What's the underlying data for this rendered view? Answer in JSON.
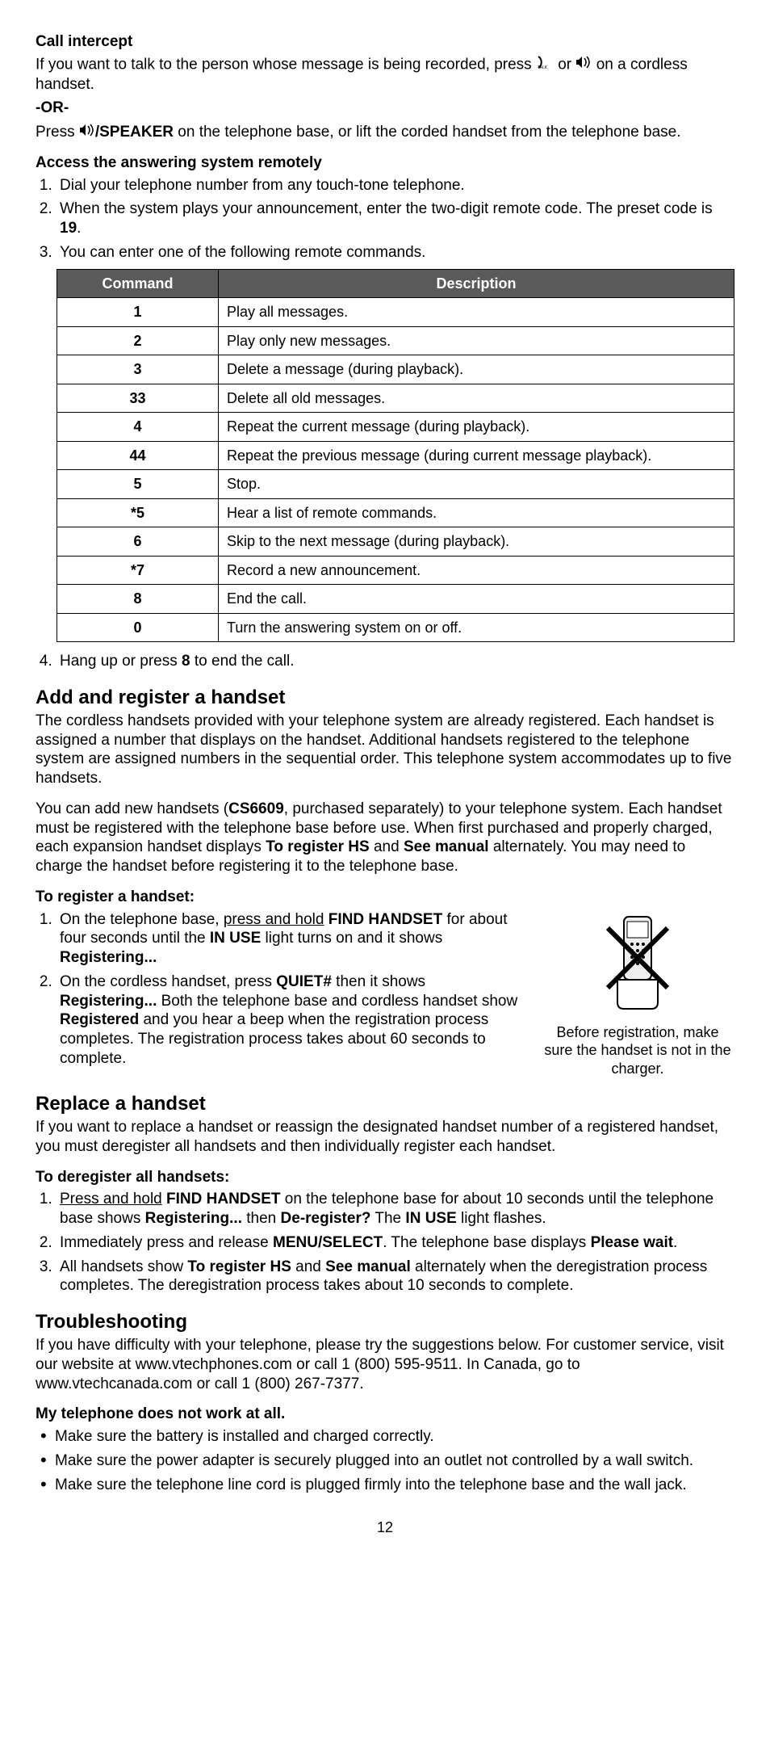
{
  "callIntercept": {
    "heading": "Call intercept",
    "p1a": "If you want to talk to the person whose message is being recorded, press ",
    "p1b": " or ",
    "p1c": " on a cordless handset.",
    "or": "-OR-",
    "p2a": "Press ",
    "p2b": "/SPEAKER",
    "p2c": " on the telephone base, or lift the corded handset from the telephone base."
  },
  "remote": {
    "heading": "Access the answering system remotely",
    "step1": "Dial your telephone number from any touch-tone telephone.",
    "step2a": "When the system plays your announcement, enter the two-digit remote code. The preset code is ",
    "step2b": "19",
    "step2c": ".",
    "step3": "You can enter one of the following remote commands.",
    "step4a": "Hang up or press ",
    "step4b": "8",
    "step4c": " to end the call.",
    "tableHeaders": {
      "cmd": "Command",
      "desc": "Description"
    },
    "rows": [
      {
        "cmd": "1",
        "desc": "Play all messages."
      },
      {
        "cmd": "2",
        "desc": "Play only new messages."
      },
      {
        "cmd": "3",
        "desc": "Delete a message (during playback)."
      },
      {
        "cmd": "33",
        "desc": "Delete all old messages."
      },
      {
        "cmd": "4",
        "desc": "Repeat the current message (during playback)."
      },
      {
        "cmd": "44",
        "desc": "Repeat the previous message (during current message playback)."
      },
      {
        "cmd": "5",
        "desc": "Stop."
      },
      {
        "cmd": "*5",
        "desc": "Hear a list of remote commands."
      },
      {
        "cmd": "6",
        "desc": "Skip to the next message (during playback)."
      },
      {
        "cmd": "*7",
        "desc": "Record a new announcement."
      },
      {
        "cmd": "8",
        "desc": "End the call."
      },
      {
        "cmd": "0",
        "desc": "Turn the answering system on or off."
      }
    ]
  },
  "addRegister": {
    "heading": "Add and register a handset",
    "p1": "The cordless handsets provided with your telephone system are already registered. Each handset is assigned a number that displays on the handset. Additional handsets registered to the telephone system are assigned numbers in the sequential order. This telephone system accommodates up to five handsets.",
    "p2a": "You can add new handsets (",
    "p2b": "CS6609",
    "p2c": ", purchased separately) to your telephone system. Each handset must be registered with the telephone base before use. When first purchased and properly charged, each expansion handset displays ",
    "p2d": "To register HS",
    "p2e": " and ",
    "p2f": "See manual",
    "p2g": " alternately. You may need to charge the handset before registering it to the telephone base.",
    "subheading": "To register a handset:",
    "step1a": "On the telephone base, ",
    "step1b": "press and hold",
    "step1c": " ",
    "step1d": "FIND HANDSET",
    "step1e": " for about four seconds until the ",
    "step1f": "IN USE",
    "step1g": " light turns on and it shows ",
    "step1h": "Registering...",
    "step2a": "On the cordless handset, press ",
    "step2b": "QUIET#",
    "step2c": " then it shows ",
    "step2d": "Registering...",
    "step2e": " Both the telephone base and cordless handset show ",
    "step2f": "Registered",
    "step2g": " and you hear a beep when the registration process completes. The registration process takes about 60 seconds to complete.",
    "caption": "Before registration, make sure the handset is not in the charger."
  },
  "replace": {
    "heading": "Replace a handset",
    "p1": "If you want to replace a handset or reassign the designated handset number of a registered handset, you must deregister all handsets and then individually register each handset.",
    "subheading": "To deregister all handsets:",
    "step1a": "Press and hold",
    "step1b": " ",
    "step1c": "FIND HANDSET",
    "step1d": " on the telephone base for about 10 seconds until the telephone base shows ",
    "step1e": "Registering...",
    "step1f": " then ",
    "step1g": "De-register?",
    "step1h": " The ",
    "step1i": "IN USE",
    "step1j": " light flashes.",
    "step2a": "Immediately press and release ",
    "step2b": "MENU/SELECT",
    "step2c": ". The telephone base displays ",
    "step2d": "Please wait",
    "step2e": ".",
    "step3a": "All handsets show ",
    "step3b": "To register HS",
    "step3c": " and ",
    "step3d": "See manual",
    "step3e": " alternately when the deregistration process completes. The deregistration process takes about 10 seconds to complete."
  },
  "trouble": {
    "heading": "Troubleshooting",
    "p1": "If you have difficulty with your telephone, please try the suggestions below. For customer service, visit our website at www.vtechphones.com or call 1 (800) 595-9511. In Canada, go to www.vtechcanada.com or call 1 (800) 267-7377.",
    "subheading": "My telephone does not work at all.",
    "b1": "Make sure the battery is installed and charged correctly.",
    "b2": "Make sure the power adapter is securely plugged into an outlet not controlled by a wall switch.",
    "b3": "Make sure the telephone line cord is plugged firmly into the telephone base and the wall jack."
  },
  "pageNumber": "12"
}
